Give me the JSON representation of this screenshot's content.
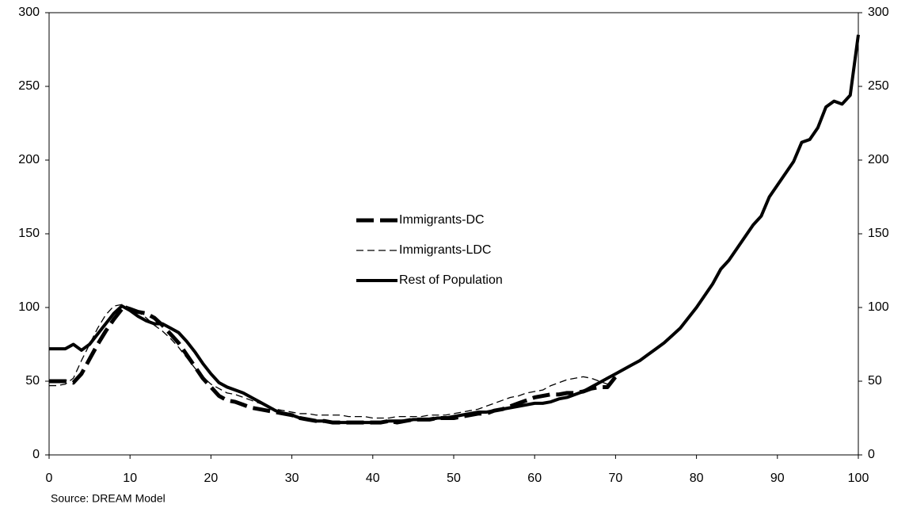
{
  "chart_data": {
    "type": "line",
    "source": "Source: DREAM Model",
    "x": [
      0,
      1,
      2,
      3,
      4,
      5,
      6,
      7,
      8,
      9,
      10,
      11,
      12,
      13,
      14,
      15,
      16,
      17,
      18,
      19,
      20,
      21,
      22,
      23,
      24,
      25,
      26,
      27,
      28,
      29,
      30,
      31,
      32,
      33,
      34,
      35,
      36,
      37,
      38,
      39,
      40,
      41,
      42,
      43,
      44,
      45,
      46,
      47,
      48,
      49,
      50,
      51,
      52,
      53,
      54,
      55,
      56,
      57,
      58,
      59,
      60,
      61,
      62,
      63,
      64,
      65,
      66,
      67,
      68,
      69,
      70,
      71,
      72,
      73,
      74,
      75,
      76,
      77,
      78,
      79,
      80,
      81,
      82,
      83,
      84,
      85,
      86,
      87,
      88,
      89,
      90,
      91,
      92,
      93,
      94,
      95,
      96,
      97,
      98,
      99,
      100
    ],
    "series": [
      {
        "name": "Immigrants-DC",
        "color": "#000000",
        "style": "long-dash",
        "values": [
          50,
          50,
          50,
          49,
          55,
          65,
          75,
          84,
          92,
          99,
          99,
          97,
          96,
          93,
          88,
          82,
          76,
          68,
          60,
          52,
          46,
          40,
          37,
          36,
          34,
          32,
          31,
          30,
          29,
          28,
          27,
          25,
          24,
          23,
          23,
          22,
          22,
          22,
          22,
          22,
          22,
          22,
          23,
          22,
          23,
          24,
          24,
          24,
          25,
          25,
          25,
          26,
          27,
          28,
          28,
          30,
          31,
          33,
          35,
          37,
          39,
          40,
          41,
          41,
          42,
          42,
          43,
          45,
          46,
          46,
          53,
          null,
          null,
          null,
          null,
          null,
          null,
          null,
          null,
          null,
          null,
          null,
          null,
          null,
          null,
          null,
          null,
          null,
          null,
          null,
          null,
          null,
          null,
          null,
          null,
          null,
          null,
          null,
          null,
          null,
          null
        ]
      },
      {
        "name": "Immigrants-LDC",
        "color": "#000000",
        "style": "thin-dash",
        "values": [
          47,
          47,
          48,
          52,
          64,
          75,
          86,
          95,
          101,
          102,
          100,
          97,
          93,
          88,
          84,
          79,
          73,
          66,
          59,
          53,
          48,
          45,
          42,
          41,
          39,
          37,
          35,
          33,
          31,
          30,
          29,
          28,
          28,
          27,
          27,
          27,
          27,
          26,
          26,
          26,
          25,
          25,
          25,
          26,
          26,
          26,
          26,
          27,
          27,
          27,
          28,
          29,
          30,
          31,
          33,
          35,
          37,
          39,
          40,
          42,
          43,
          44,
          47,
          49,
          51,
          52,
          53,
          52,
          50,
          48,
          53,
          null,
          null,
          null,
          null,
          null,
          null,
          null,
          null,
          null,
          null,
          null,
          null,
          null,
          null,
          null,
          null,
          null,
          null,
          null,
          null,
          null,
          null,
          null,
          null,
          null,
          null,
          null,
          null,
          null,
          null
        ]
      },
      {
        "name": "Rest of Population",
        "color": "#000000",
        "style": "solid",
        "values": [
          72,
          72,
          72,
          75,
          71,
          75,
          82,
          89,
          96,
          101,
          98,
          94,
          91,
          89,
          89,
          86,
          83,
          77,
          70,
          62,
          55,
          49,
          46,
          44,
          42,
          39,
          36,
          33,
          30,
          28,
          27,
          25,
          24,
          23,
          23,
          22,
          22,
          22,
          22,
          22,
          22,
          22,
          23,
          23,
          23,
          24,
          24,
          24,
          25,
          25,
          26,
          27,
          28,
          29,
          29,
          30,
          31,
          32,
          33,
          34,
          35,
          35,
          36,
          38,
          39,
          41,
          43,
          46,
          49,
          52,
          55,
          58,
          61,
          64,
          68,
          72,
          76,
          81,
          86,
          93,
          100,
          108,
          116,
          126,
          132,
          140,
          148,
          156,
          162,
          175,
          183,
          191,
          199,
          212,
          214,
          222,
          236,
          240,
          238,
          244,
          285
        ]
      }
    ],
    "xlim": [
      0,
      100
    ],
    "xticks": [
      0,
      10,
      20,
      30,
      40,
      50,
      60,
      70,
      80,
      90,
      100
    ],
    "ylim": [
      0,
      300
    ],
    "yticks": [
      0,
      50,
      100,
      150,
      200,
      250,
      300
    ],
    "y2lim": [
      0,
      300
    ],
    "y2ticks": [
      0,
      50,
      100,
      150,
      200,
      250,
      300
    ],
    "grid": false,
    "legend": "center"
  }
}
